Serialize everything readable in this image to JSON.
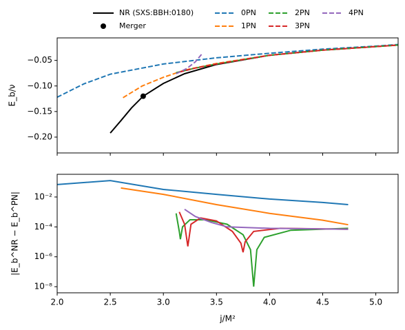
{
  "chart_data": [
    {
      "type": "line",
      "ylabel": "E_b/ν",
      "legend": "above",
      "show_xtick_labels": false,
      "xlim": [
        2.0,
        5.21
      ],
      "ylim": [
        -0.231,
        -0.006
      ],
      "xticks": [
        2,
        2.5,
        3,
        3.5,
        4,
        4.5,
        5
      ],
      "yticks": [
        {
          "value": -0.05,
          "label": "−0.05"
        },
        {
          "value": -0.1,
          "label": "−0.10"
        },
        {
          "value": -0.15,
          "label": "−0.15"
        },
        {
          "value": -0.2,
          "label": "−0.20"
        }
      ],
      "series": [
        {
          "name": "NR (SXS:BBH:0180)",
          "color": "#000000",
          "style": "solid",
          "x": [
            2.5,
            2.6,
            2.7,
            2.81,
            3.0,
            3.2,
            3.5,
            4.0,
            4.5,
            5.0,
            5.21
          ],
          "values": [
            -0.192,
            -0.168,
            -0.143,
            -0.12,
            -0.095,
            -0.076,
            -0.058,
            -0.04,
            -0.03,
            -0.023,
            -0.02
          ]
        },
        {
          "name": "Merger",
          "color": "#000000",
          "style": "marker",
          "x": [
            2.81
          ],
          "values": [
            -0.12
          ]
        },
        {
          "name": "0PN",
          "color": "#1f77b4",
          "style": "dashed",
          "x": [
            2.0,
            2.25,
            2.5,
            3.0,
            3.5,
            4.0,
            4.5,
            5.0,
            5.21
          ],
          "values": [
            -0.122,
            -0.096,
            -0.077,
            -0.057,
            -0.045,
            -0.036,
            -0.028,
            -0.022,
            -0.019
          ]
        },
        {
          "name": "1PN",
          "color": "#ff7f0e",
          "style": "dashed",
          "x": [
            2.62,
            2.8,
            3.0,
            3.2,
            3.5,
            4.0,
            4.5,
            5.0,
            5.21
          ],
          "values": [
            -0.123,
            -0.1,
            -0.083,
            -0.069,
            -0.056,
            -0.04,
            -0.03,
            -0.023,
            -0.02
          ]
        },
        {
          "name": "2PN",
          "color": "#2ca02c",
          "style": "dashed",
          "x": [
            3.12,
            3.3,
            3.5,
            4.0,
            4.5,
            5.0,
            5.21
          ],
          "values": [
            -0.074,
            -0.065,
            -0.057,
            -0.04,
            -0.03,
            -0.023,
            -0.02
          ]
        },
        {
          "name": "3PN",
          "color": "#d62728",
          "style": "dashed",
          "x": [
            3.15,
            3.3,
            3.5,
            4.0,
            4.5,
            5.0,
            5.21
          ],
          "values": [
            -0.073,
            -0.065,
            -0.057,
            -0.04,
            -0.03,
            -0.023,
            -0.02
          ]
        },
        {
          "name": "4PN",
          "color": "#9467bd",
          "style": "dashed",
          "x": [
            3.12,
            3.22,
            3.3,
            3.36
          ],
          "values": [
            -0.076,
            -0.066,
            -0.053,
            -0.038
          ]
        }
      ]
    },
    {
      "type": "line",
      "ylabel": "|E_b^NR − E_b^PN|",
      "xlabel": "j/M²",
      "log_y": true,
      "show_xtick_labels": true,
      "xlim": [
        2.0,
        5.21
      ],
      "ylim": [
        3.9e-09,
        0.33
      ],
      "xticks": [
        {
          "value": 2,
          "label": "2.0"
        },
        2.5,
        {
          "value": 3,
          "label": "3.0"
        },
        3.5,
        {
          "value": 4,
          "label": "4.0"
        },
        4.5,
        {
          "value": 5,
          "label": "5.0"
        }
      ],
      "yticks": [
        {
          "value": 1e-08,
          "label": "10⁻⁸"
        },
        {
          "value": 1e-06,
          "label": "10⁻⁶"
        },
        {
          "value": 0.0001,
          "label": "10⁻⁴"
        },
        {
          "value": 0.01,
          "label": "10⁻²"
        }
      ],
      "series": [
        {
          "color": "#1f77b4",
          "style": "solid",
          "x": [
            2.0,
            2.5,
            3.0,
            3.5,
            4.0,
            4.5,
            4.74
          ],
          "values": [
            0.068,
            0.126,
            0.032,
            0.015,
            0.0073,
            0.0043,
            0.0031
          ]
        },
        {
          "color": "#ff7f0e",
          "style": "solid",
          "x": [
            2.6,
            3.0,
            3.5,
            4.0,
            4.5,
            4.74
          ],
          "values": [
            0.04,
            0.015,
            0.0031,
            0.0008,
            0.00028,
            0.00014
          ]
        },
        {
          "color": "#2ca02c",
          "style": "solid",
          "x": [
            3.12,
            3.15,
            3.16,
            3.18,
            3.25,
            3.4,
            3.6,
            3.75,
            3.82,
            3.85,
            3.88,
            3.95,
            4.2,
            4.74
          ],
          "values": [
            0.0008,
            5e-05,
            1.5e-05,
            0.0001,
            0.0003,
            0.0003,
            0.00015,
            3e-05,
            3e-06,
            1e-08,
            3e-06,
            2e-05,
            6e-05,
            8e-05
          ]
        },
        {
          "color": "#d62728",
          "style": "solid",
          "x": [
            3.15,
            3.2,
            3.23,
            3.26,
            3.35,
            3.5,
            3.65,
            3.73,
            3.75,
            3.77,
            3.85,
            4.1,
            4.74
          ],
          "values": [
            0.001,
            0.00015,
            5e-06,
            0.00015,
            0.0004,
            0.00025,
            5e-05,
            8e-06,
            2e-06,
            1e-05,
            5e-05,
            8e-05,
            7e-05
          ]
        },
        {
          "color": "#9467bd",
          "style": "solid",
          "x": [
            3.2,
            3.3,
            3.45,
            3.6,
            4.0,
            4.74
          ],
          "values": [
            0.0015,
            0.0005,
            0.0002,
            0.0001,
            8e-05,
            7e-05
          ]
        }
      ]
    }
  ]
}
